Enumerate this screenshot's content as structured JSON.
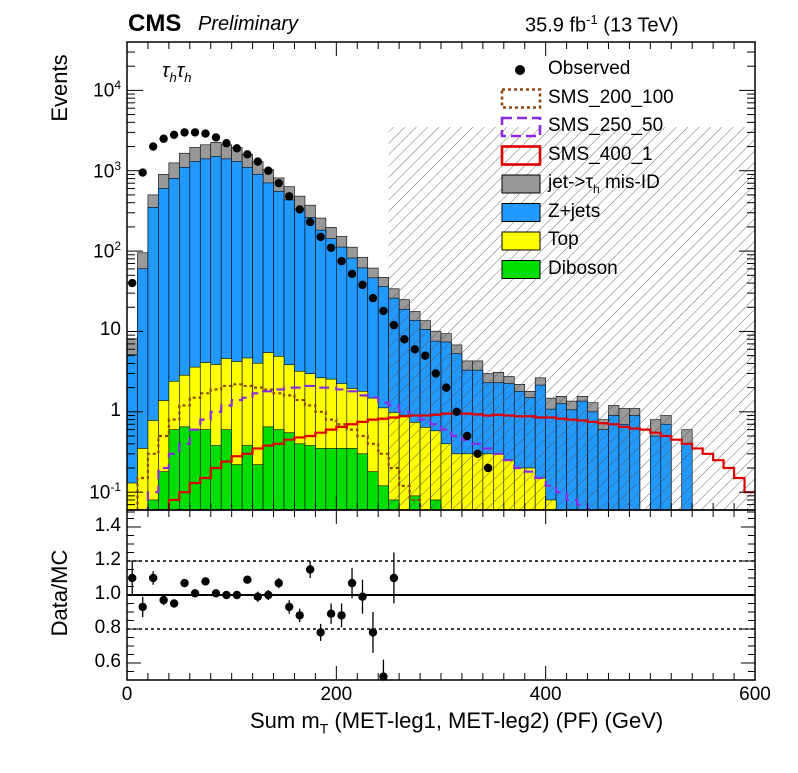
{
  "header": {
    "experiment": "CMS",
    "status": "Preliminary",
    "lumi": "35.9 fb",
    "lumi_exp": "-1",
    "energy": " (13 TeV)",
    "channel_tau": "τ",
    "channel_sub": "h"
  },
  "axes": {
    "top_ylabel": "Events",
    "bottom_ylabel": "Data/MC",
    "xlabel_pre": "Sum m",
    "xlabel_sub": "T",
    "xlabel_post": " (MET-leg1, MET-leg2) (PF) (GeV)"
  },
  "chart_data": [
    {
      "type": "area",
      "stacked": true,
      "log_y": true,
      "ylabel": "Events",
      "xlim": [
        0,
        600
      ],
      "ylim": [
        0.06,
        40000
      ],
      "y_ticks": [
        {
          "value": 0.1,
          "label": "10",
          "exp": "-1"
        },
        {
          "value": 1,
          "label": "1",
          "exp": ""
        },
        {
          "value": 10,
          "label": "10",
          "exp": ""
        },
        {
          "value": 100,
          "label": "10",
          "exp": "2"
        },
        {
          "value": 1000,
          "label": "10",
          "exp": "3"
        },
        {
          "value": 10000,
          "label": "10",
          "exp": "4"
        }
      ],
      "bin_width": 10,
      "x_bins": [
        0,
        10,
        20,
        30,
        40,
        50,
        60,
        70,
        80,
        90,
        100,
        110,
        120,
        130,
        140,
        150,
        160,
        170,
        180,
        190,
        200,
        210,
        220,
        230,
        240,
        250,
        260,
        270,
        280,
        290,
        300,
        310,
        320,
        330,
        340,
        350,
        360,
        370,
        380,
        390,
        400,
        410,
        420,
        430,
        440,
        450,
        460,
        470,
        480,
        490,
        500,
        510,
        520,
        530,
        540,
        550,
        560,
        570,
        580,
        590
      ],
      "stack_series": [
        {
          "name": "Diboson",
          "color": "#00dd00",
          "values": [
            0.03,
            0.05,
            0.08,
            0.18,
            0.6,
            0.65,
            0.6,
            0.6,
            0.38,
            0.6,
            0.22,
            0.38,
            0.22,
            0.65,
            0.6,
            0.55,
            0.4,
            0.38,
            0.35,
            0.35,
            0.35,
            0.35,
            0.3,
            0.18,
            0.12,
            0.08,
            0.06,
            0.09,
            0.04,
            0.08,
            0,
            0,
            0,
            0,
            0,
            0,
            0,
            0,
            0,
            0,
            0,
            0,
            0,
            0,
            0,
            0,
            0,
            0,
            0,
            0,
            0,
            0,
            0,
            0,
            0,
            0,
            0,
            0,
            0,
            0
          ]
        },
        {
          "name": "Top",
          "color": "#ffff00",
          "values": [
            0.1,
            0.3,
            0.7,
            1.2,
            1.8,
            2.2,
            3,
            3.5,
            3.5,
            4,
            4,
            4.3,
            3.8,
            4.8,
            4.3,
            3.3,
            2.8,
            2.6,
            2.3,
            2.2,
            1.9,
            1.6,
            1.5,
            1.3,
            1.0,
            0.9,
            0.85,
            0.65,
            0.6,
            0.5,
            0.4,
            0.3,
            0.3,
            0.3,
            0.3,
            0.3,
            0.25,
            0.2,
            0.2,
            0.15,
            0.08,
            0.06,
            0.06,
            0.06,
            0,
            0,
            0,
            0,
            0,
            0,
            0,
            0,
            0,
            0,
            0,
            0,
            0,
            0,
            0,
            0
          ]
        },
        {
          "name": "Z+jets",
          "color": "#2299ff",
          "values": [
            5,
            60,
            350,
            600,
            800,
            1100,
            1300,
            1400,
            1500,
            1400,
            1300,
            1100,
            900,
            700,
            550,
            430,
            330,
            260,
            180,
            140,
            110,
            80,
            60,
            45,
            35,
            25,
            18,
            13,
            10,
            7,
            7,
            5,
            3,
            3,
            2,
            2,
            2,
            1.6,
            1.3,
            2,
            1,
            1.2,
            1,
            1.3,
            1,
            0.6,
            0.9,
            0.7,
            0.9,
            0,
            0.5,
            0.7,
            0,
            0.4,
            0,
            0,
            0,
            0,
            0,
            0
          ]
        },
        {
          "name": "jet->τh mis-ID",
          "color": "#999999",
          "values": [
            3,
            35,
            150,
            300,
            450,
            550,
            650,
            700,
            750,
            700,
            650,
            500,
            400,
            330,
            260,
            200,
            150,
            110,
            75,
            55,
            40,
            30,
            22,
            15,
            11,
            8,
            6,
            4,
            3,
            2.5,
            2,
            1.5,
            1,
            1,
            0.7,
            0.8,
            0.5,
            0.4,
            0.3,
            0.5,
            0.4,
            0.3,
            0.3,
            0.2,
            0.3,
            0.2,
            0.3,
            0.4,
            0.2,
            0,
            0.3,
            0.2,
            0,
            0.2,
            0,
            0,
            0,
            0,
            0,
            0
          ]
        }
      ],
      "signal_series": [
        {
          "name": "SMS_200_100",
          "color": "#8b4513",
          "dash": "3,3",
          "values": [
            0.06,
            0.15,
            0.3,
            0.5,
            0.8,
            1.2,
            1.5,
            1.7,
            1.9,
            2.1,
            2.2,
            2.1,
            2,
            1.9,
            1.7,
            1.6,
            1.4,
            1.2,
            1.0,
            0.8,
            0.7,
            0.6,
            0.5,
            0.4,
            0.3,
            0.2,
            0.12,
            0.08,
            0.05,
            0.03,
            0,
            0,
            0,
            0,
            0,
            0,
            0,
            0,
            0,
            0,
            0,
            0,
            0,
            0,
            0,
            0,
            0,
            0,
            0,
            0,
            0,
            0,
            0,
            0,
            0,
            0,
            0,
            0,
            0,
            0
          ]
        },
        {
          "name": "SMS_250_50",
          "color": "#8a2be2",
          "dash": "10,6",
          "values": [
            0.03,
            0.06,
            0.1,
            0.2,
            0.3,
            0.4,
            0.6,
            0.8,
            1.0,
            1.2,
            1.4,
            1.5,
            1.7,
            1.8,
            1.9,
            2.0,
            2.0,
            2.1,
            2.0,
            2.0,
            1.9,
            1.8,
            1.6,
            1.5,
            1.3,
            1.2,
            1.0,
            0.9,
            0.8,
            0.7,
            0.6,
            0.5,
            0.45,
            0.4,
            0.35,
            0.3,
            0.25,
            0.2,
            0.18,
            0.15,
            0.12,
            0.1,
            0.08,
            0.07,
            0.06,
            0.05,
            0.04,
            0.03,
            0,
            0,
            0,
            0,
            0,
            0,
            0,
            0,
            0,
            0,
            0,
            0
          ]
        },
        {
          "name": "SMS_400_1",
          "color": "#dd0000",
          "dash": "",
          "values": [
            0.01,
            0.02,
            0.03,
            0.05,
            0.08,
            0.1,
            0.13,
            0.15,
            0.2,
            0.24,
            0.28,
            0.3,
            0.35,
            0.38,
            0.4,
            0.45,
            0.48,
            0.5,
            0.55,
            0.6,
            0.65,
            0.7,
            0.75,
            0.8,
            0.82,
            0.85,
            0.88,
            0.9,
            0.9,
            0.92,
            0.95,
            0.95,
            0.95,
            0.93,
            0.9,
            0.92,
            0.9,
            0.88,
            0.88,
            0.85,
            0.85,
            0.82,
            0.8,
            0.78,
            0.75,
            0.72,
            0.7,
            0.65,
            0.62,
            0.6,
            0.55,
            0.5,
            0.45,
            0.4,
            0.35,
            0.3,
            0.25,
            0.2,
            0.15,
            0.1
          ]
        }
      ],
      "observed": {
        "name": "Observed",
        "x": [
          5,
          15,
          25,
          35,
          45,
          55,
          65,
          75,
          85,
          95,
          105,
          115,
          125,
          135,
          145,
          155,
          165,
          175,
          185,
          195,
          205,
          215,
          225,
          235,
          245,
          255,
          265,
          275,
          285,
          295,
          305,
          315,
          325,
          335,
          345
        ],
        "y": [
          40,
          950,
          2000,
          2500,
          2800,
          3000,
          3000,
          2900,
          2600,
          2200,
          1900,
          1600,
          1300,
          1000,
          700,
          480,
          330,
          230,
          150,
          110,
          75,
          52,
          38,
          26,
          18,
          12,
          8,
          6,
          5,
          3,
          2,
          1,
          0.5,
          0.3,
          0.2
        ]
      },
      "uncertainty_band": {
        "from_x": 250,
        "to_x": 600,
        "upper_y": 3500
      },
      "legend": {
        "position": "top-right",
        "entries": [
          "Observed",
          "SMS_200_100",
          "SMS_250_50",
          "SMS_400_1",
          "jet->τh mis-ID",
          "Z+jets",
          "Top",
          "Diboson"
        ]
      }
    },
    {
      "type": "scatter",
      "ylabel": "Data/MC",
      "xlabel": "Sum mT (MET-leg1, MET-leg2) (PF) (GeV)",
      "xlim": [
        0,
        600
      ],
      "ylim": [
        0.5,
        1.5
      ],
      "y_ticks": [
        0.6,
        0.8,
        1.0,
        1.2,
        1.4
      ],
      "y_tick_labels": [
        "0.6",
        "0.8",
        "1.0",
        "1.2",
        "1.4"
      ],
      "x_ticks": [
        0,
        200,
        400,
        600
      ],
      "x_tick_labels": [
        "0",
        "200",
        "400",
        "600"
      ],
      "reference_lines": [
        1.0,
        0.8,
        1.2
      ],
      "points": [
        {
          "x": 5,
          "y": 1.1,
          "err": 0.1
        },
        {
          "x": 15,
          "y": 0.93,
          "err": 0.06
        },
        {
          "x": 25,
          "y": 1.1,
          "err": 0.04
        },
        {
          "x": 35,
          "y": 0.97,
          "err": 0.03
        },
        {
          "x": 45,
          "y": 0.95,
          "err": 0.02
        },
        {
          "x": 55,
          "y": 1.07,
          "err": 0.02
        },
        {
          "x": 65,
          "y": 1.01,
          "err": 0.02
        },
        {
          "x": 75,
          "y": 1.08,
          "err": 0.02
        },
        {
          "x": 85,
          "y": 1.01,
          "err": 0.02
        },
        {
          "x": 95,
          "y": 1.0,
          "err": 0.02
        },
        {
          "x": 105,
          "y": 1.0,
          "err": 0.02
        },
        {
          "x": 115,
          "y": 1.09,
          "err": 0.02
        },
        {
          "x": 125,
          "y": 0.99,
          "err": 0.03
        },
        {
          "x": 135,
          "y": 1.0,
          "err": 0.03
        },
        {
          "x": 145,
          "y": 1.07,
          "err": 0.03
        },
        {
          "x": 155,
          "y": 0.93,
          "err": 0.04
        },
        {
          "x": 165,
          "y": 0.88,
          "err": 0.04
        },
        {
          "x": 175,
          "y": 1.15,
          "err": 0.05
        },
        {
          "x": 185,
          "y": 0.78,
          "err": 0.05
        },
        {
          "x": 195,
          "y": 0.89,
          "err": 0.06
        },
        {
          "x": 205,
          "y": 0.88,
          "err": 0.07
        },
        {
          "x": 215,
          "y": 1.07,
          "err": 0.09
        },
        {
          "x": 225,
          "y": 0.99,
          "err": 0.1
        },
        {
          "x": 235,
          "y": 0.78,
          "err": 0.12
        },
        {
          "x": 245,
          "y": 0.52,
          "err": 0.1
        },
        {
          "x": 255,
          "y": 1.1,
          "err": 0.15
        }
      ]
    }
  ]
}
